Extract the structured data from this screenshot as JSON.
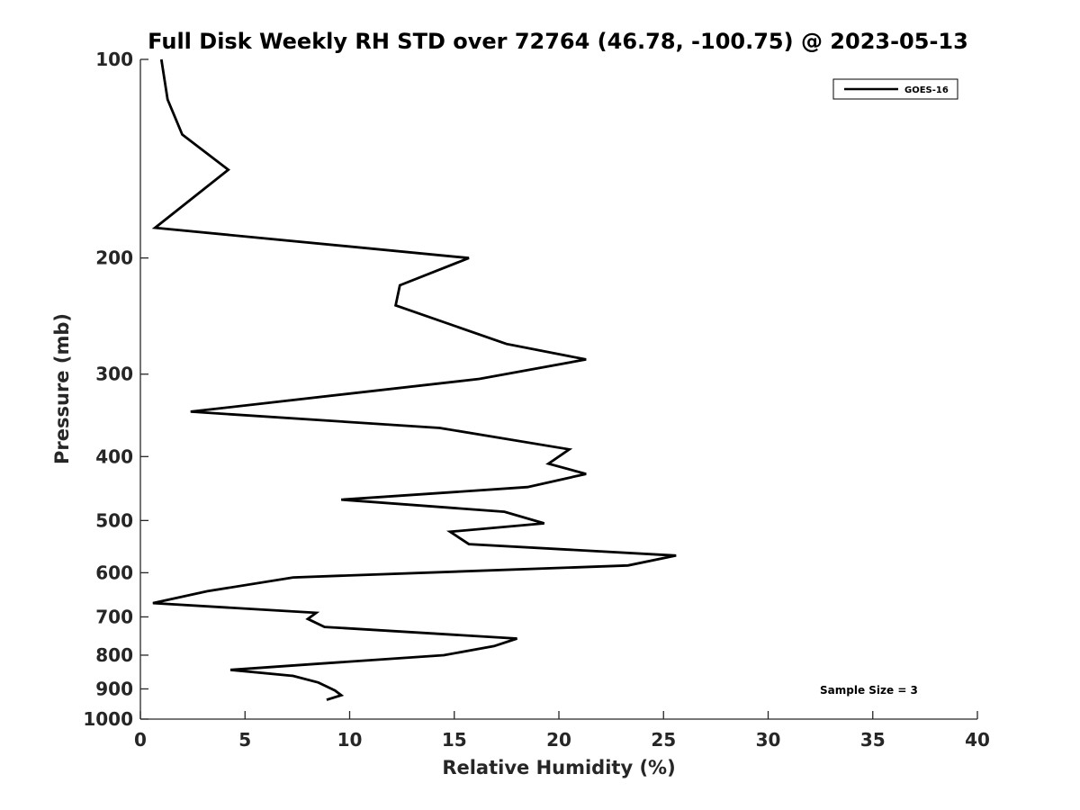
{
  "chart_data": {
    "type": "line",
    "title": "Full Disk Weekly RH STD over 72764 (46.78, -100.75) @ 2023-05-13",
    "xlabel": "Relative Humidity (%)",
    "ylabel": "Pressure (mb)",
    "xlim": [
      0,
      40
    ],
    "ylim": [
      100,
      1000
    ],
    "y_scale": "log",
    "y_direction": "reversed",
    "grid": false,
    "legend_position": "top-right",
    "x_ticks": [
      "0",
      "5",
      "10",
      "15",
      "20",
      "25",
      "30",
      "35",
      "40"
    ],
    "y_ticks": [
      "100",
      "200",
      "300",
      "400",
      "500",
      "600",
      "700",
      "800",
      "900",
      "1000"
    ],
    "annotation": "Sample Size = 3",
    "series": [
      {
        "name": "GOES-16",
        "color": "#000000",
        "points": [
          [
            1.0,
            100
          ],
          [
            1.3,
            115
          ],
          [
            2.0,
            130
          ],
          [
            4.2,
            147
          ],
          [
            0.7,
            180
          ],
          [
            15.7,
            200
          ],
          [
            12.4,
            220
          ],
          [
            12.2,
            236
          ],
          [
            17.5,
            270
          ],
          [
            21.3,
            285
          ],
          [
            16.2,
            305
          ],
          [
            2.4,
            342
          ],
          [
            14.3,
            362
          ],
          [
            20.5,
            390
          ],
          [
            19.5,
            410
          ],
          [
            21.3,
            425
          ],
          [
            18.5,
            445
          ],
          [
            9.6,
            465
          ],
          [
            17.4,
            485
          ],
          [
            19.3,
            505
          ],
          [
            14.8,
            520
          ],
          [
            15.7,
            543
          ],
          [
            25.6,
            565
          ],
          [
            23.3,
            585
          ],
          [
            7.3,
            610
          ],
          [
            3.2,
            640
          ],
          [
            0.6,
            667
          ],
          [
            8.4,
            690
          ],
          [
            8.0,
            705
          ],
          [
            8.8,
            725
          ],
          [
            18.0,
            755
          ],
          [
            16.9,
            775
          ],
          [
            14.5,
            800
          ],
          [
            8.3,
            825
          ],
          [
            4.3,
            842
          ],
          [
            7.3,
            860
          ],
          [
            8.5,
            880
          ],
          [
            9.3,
            905
          ],
          [
            9.6,
            920
          ],
          [
            8.9,
            935
          ]
        ]
      }
    ]
  }
}
